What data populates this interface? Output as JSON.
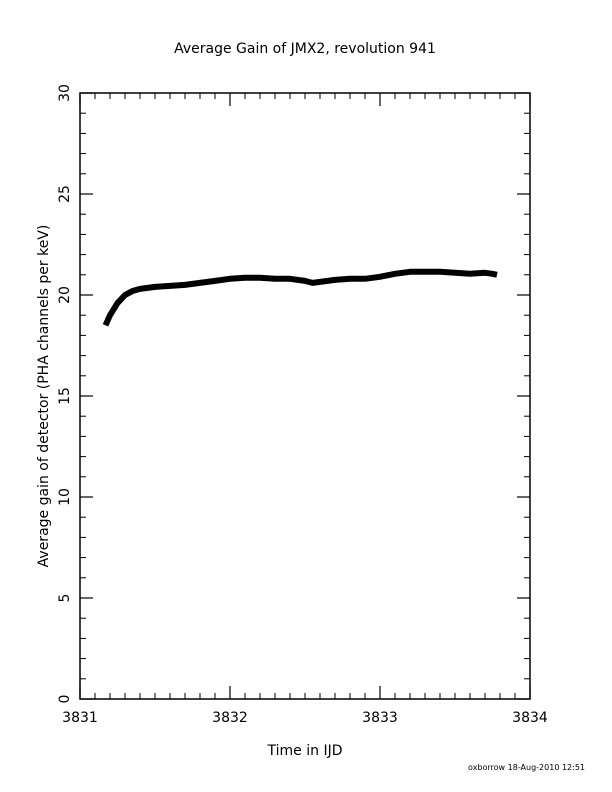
{
  "chart_data": {
    "type": "line",
    "title": "Average Gain of JMX2, revolution 941",
    "xlabel": "Time in IJD",
    "ylabel": "Average gain of detector (PHA channels per keV)",
    "xlim": [
      3831,
      3834
    ],
    "ylim": [
      0,
      30
    ],
    "xticks": [
      3831,
      3832,
      3833,
      3834
    ],
    "yticks": [
      0,
      5,
      10,
      15,
      20,
      25,
      30
    ],
    "x_minor_step": 0.1,
    "y_minor_step": 1,
    "grid": false,
    "series": [
      {
        "color": "#000000",
        "x": [
          3831.17,
          3831.2,
          3831.25,
          3831.3,
          3831.35,
          3831.4,
          3831.5,
          3831.6,
          3831.7,
          3831.8,
          3831.9,
          3832.0,
          3832.1,
          3832.2,
          3832.3,
          3832.4,
          3832.5,
          3832.55,
          3832.6,
          3832.7,
          3832.8,
          3832.9,
          3833.0,
          3833.1,
          3833.2,
          3833.3,
          3833.4,
          3833.5,
          3833.6,
          3833.7,
          3833.75,
          3833.78
        ],
        "y": [
          18.5,
          19.0,
          19.6,
          20.0,
          20.2,
          20.3,
          20.4,
          20.45,
          20.5,
          20.6,
          20.7,
          20.8,
          20.85,
          20.85,
          20.8,
          20.8,
          20.7,
          20.6,
          20.65,
          20.75,
          20.8,
          20.8,
          20.9,
          21.05,
          21.15,
          21.15,
          21.15,
          21.1,
          21.05,
          21.1,
          21.05,
          21.0
        ]
      }
    ]
  },
  "footer": {
    "stamp": "oxborrow 18-Aug-2010 12:51"
  }
}
